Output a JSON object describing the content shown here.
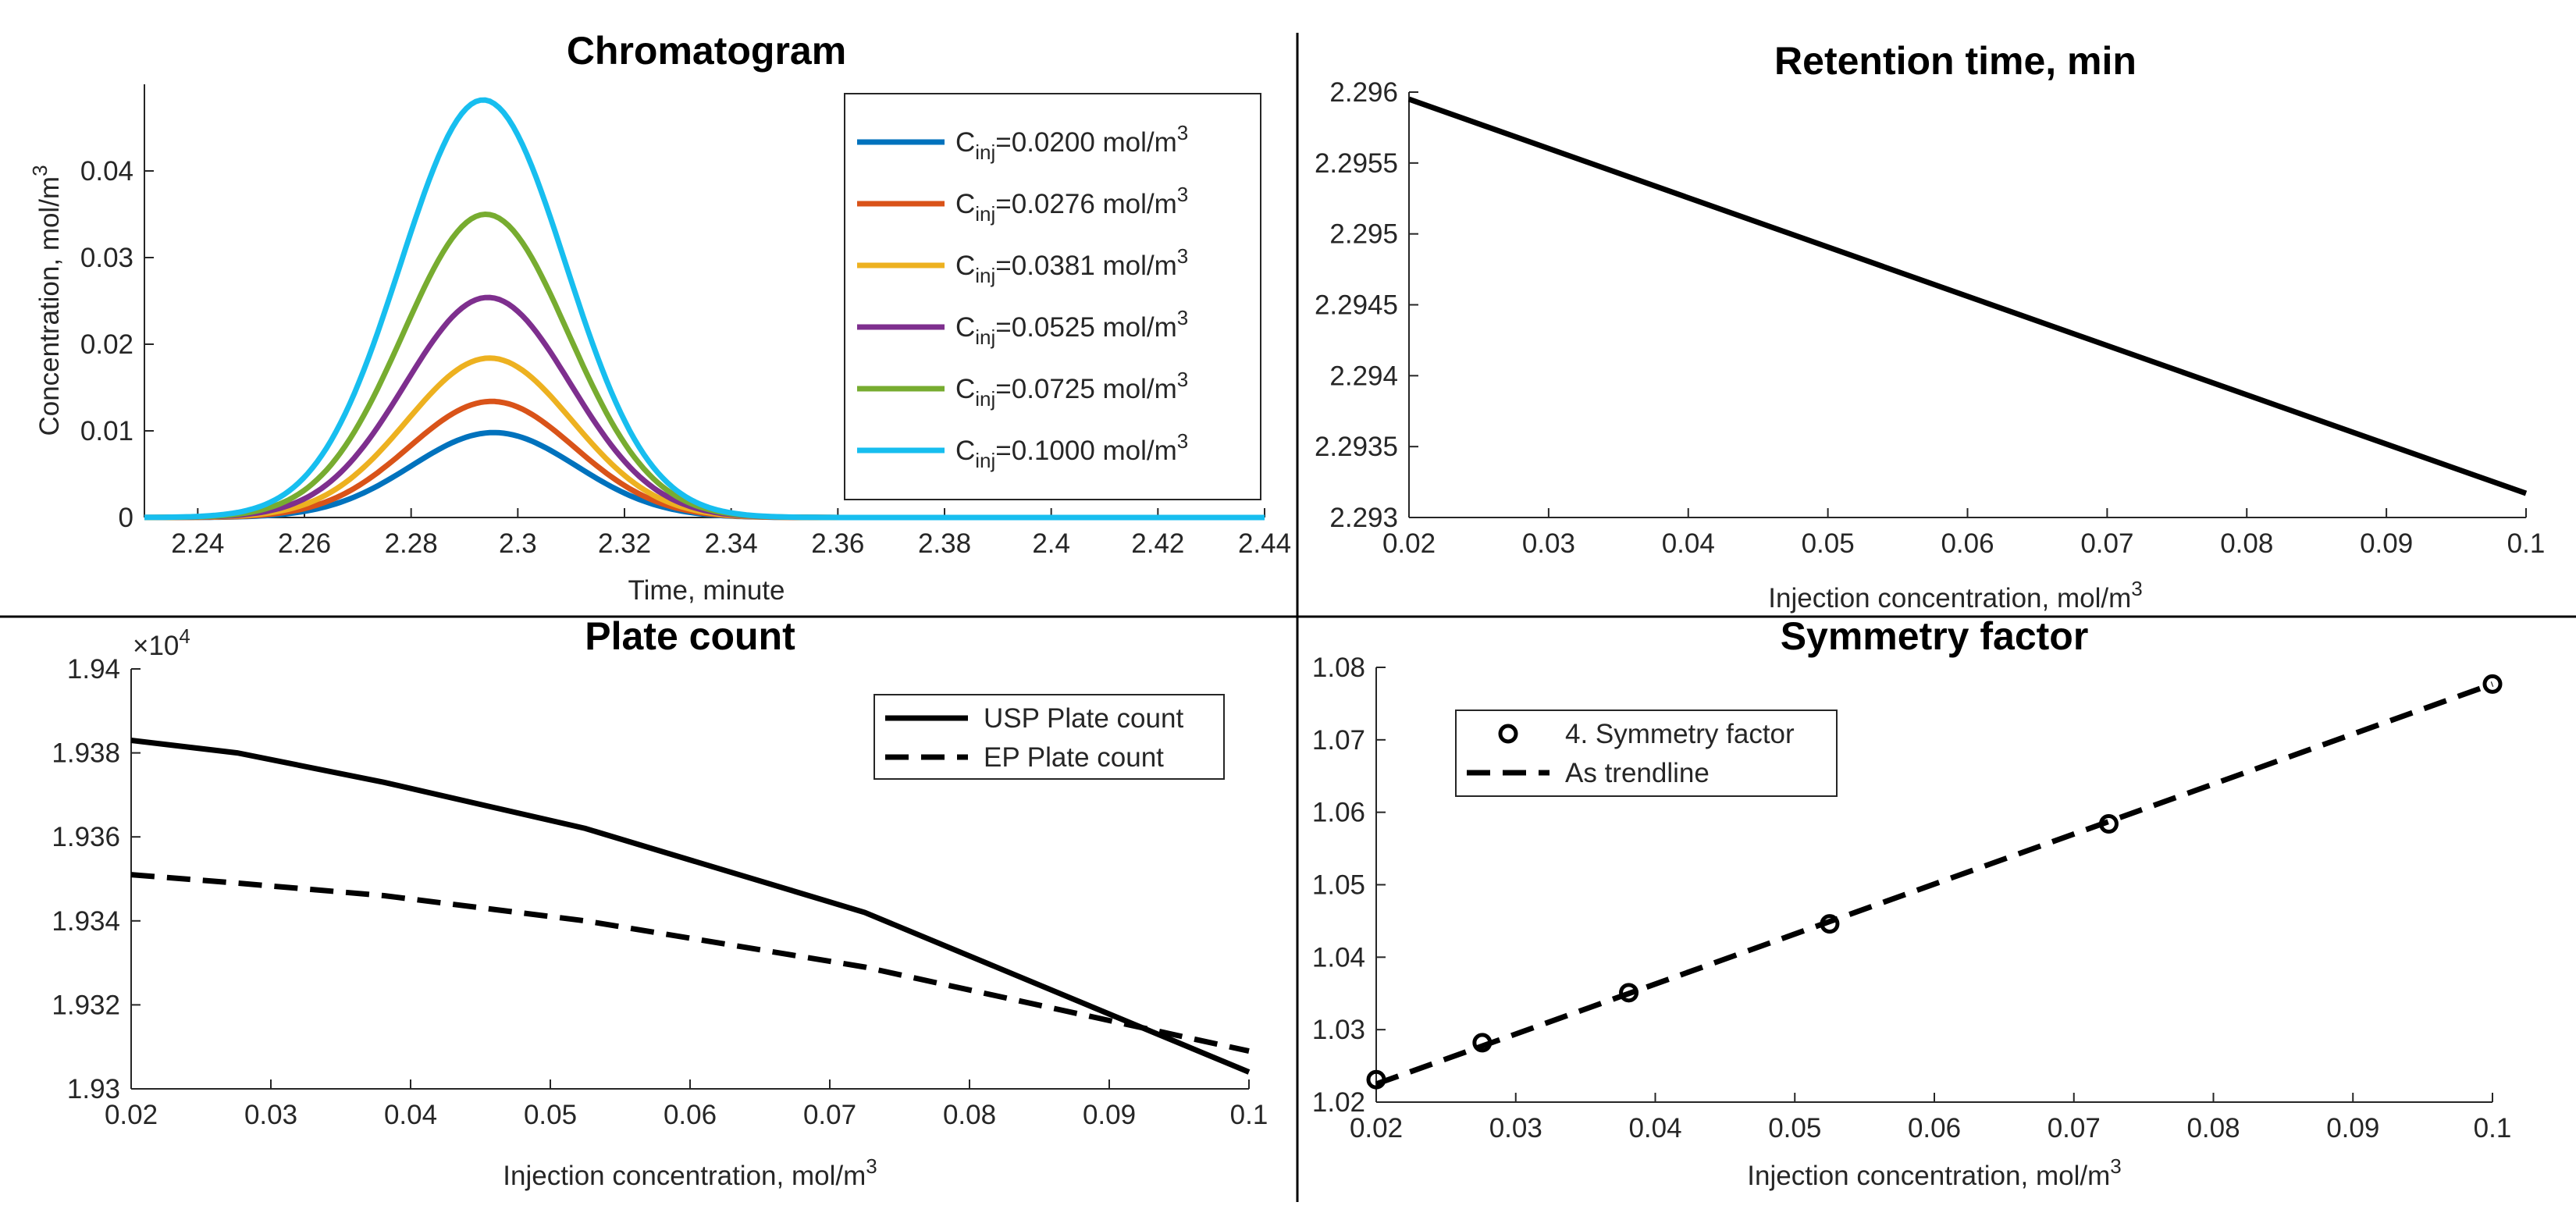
{
  "chart_data": [
    {
      "type": "line",
      "title": "Chromatogram",
      "xlabel": "Time, minute",
      "ylabel": "Concentration, mol/m",
      "ylabel_sup": "3",
      "xlim": [
        2.23,
        2.44
      ],
      "ylim": [
        0,
        0.05
      ],
      "xticks": [
        2.24,
        2.26,
        2.28,
        2.3,
        2.32,
        2.34,
        2.36,
        2.38,
        2.4,
        2.42,
        2.44
      ],
      "xtick_labels": [
        "2.24",
        "2.26",
        "2.28",
        "2.3",
        "2.32",
        "2.34",
        "2.36",
        "2.38",
        "2.4",
        "2.42",
        "2.44"
      ],
      "yticks": [
        0,
        0.01,
        0.02,
        0.03,
        0.04
      ],
      "ytick_labels": [
        "0",
        "0.01",
        "0.02",
        "0.03",
        "0.04"
      ],
      "legend_position": "top-right",
      "series": [
        {
          "name": "C_inj=0.0200 mol/m3",
          "base": "C",
          "sub": "inj",
          "value_text": "=0.0200 mol/m",
          "sup": "3",
          "color": "#0072BD",
          "peak_time": 2.2955,
          "peak_height": 0.0098,
          "sigma": 0.0155
        },
        {
          "name": "C_inj=0.0276 mol/m3",
          "base": "C",
          "sub": "inj",
          "value_text": "=0.0276 mol/m",
          "sup": "3",
          "color": "#D95319",
          "peak_time": 2.2951,
          "peak_height": 0.0134,
          "sigma": 0.0155
        },
        {
          "name": "C_inj=0.0381 mol/m3",
          "base": "C",
          "sub": "inj",
          "value_text": "=0.0381 mol/m",
          "sup": "3",
          "color": "#EDB120",
          "peak_time": 2.2947,
          "peak_height": 0.0184,
          "sigma": 0.0155
        },
        {
          "name": "C_inj=0.0525 mol/m3",
          "base": "C",
          "sub": "inj",
          "value_text": "=0.0525 mol/m",
          "sup": "3",
          "color": "#7E2F8E",
          "peak_time": 2.2944,
          "peak_height": 0.0254,
          "sigma": 0.0155
        },
        {
          "name": "C_inj=0.0725 mol/m3",
          "base": "C",
          "sub": "inj",
          "value_text": "=0.0725 mol/m",
          "sup": "3",
          "color": "#77AC30",
          "peak_time": 2.294,
          "peak_height": 0.035,
          "sigma": 0.0155
        },
        {
          "name": "C_inj=0.1000 mol/m3",
          "base": "C",
          "sub": "inj",
          "value_text": "=0.1000 mol/m",
          "sup": "3",
          "color": "#17BEEF",
          "peak_time": 2.2935,
          "peak_height": 0.0482,
          "sigma": 0.0155
        }
      ]
    },
    {
      "type": "line",
      "title": "Retention time, min",
      "xlabel": "Injection concentration, mol/m",
      "xlabel_sup": "3",
      "ylabel": "",
      "xlim": [
        0.02,
        0.1
      ],
      "ylim": [
        2.293,
        2.296
      ],
      "xticks": [
        0.02,
        0.03,
        0.04,
        0.05,
        0.06,
        0.07,
        0.08,
        0.09,
        0.1
      ],
      "xtick_labels": [
        "0.02",
        "0.03",
        "0.04",
        "0.05",
        "0.06",
        "0.07",
        "0.08",
        "0.09",
        "0.1"
      ],
      "yticks": [
        2.293,
        2.2935,
        2.294,
        2.2945,
        2.295,
        2.2955,
        2.296
      ],
      "ytick_labels": [
        "2.293",
        "2.2935",
        "2.294",
        "2.2945",
        "2.295",
        "2.2955",
        "2.296"
      ],
      "series": [
        {
          "name": "Retention time",
          "color": "#000000",
          "x": [
            0.02,
            0.1
          ],
          "y": [
            2.29595,
            2.29317
          ]
        }
      ]
    },
    {
      "type": "line",
      "title": "Plate count",
      "xlabel": "Injection concentration, mol/m",
      "xlabel_sup": "3",
      "ylabel": "",
      "xlim": [
        0.02,
        0.1
      ],
      "ylim": [
        1.93,
        1.94
      ],
      "y_multiplier_base": "×10",
      "y_multiplier_exp": "4",
      "xticks": [
        0.02,
        0.03,
        0.04,
        0.05,
        0.06,
        0.07,
        0.08,
        0.09,
        0.1
      ],
      "xtick_labels": [
        "0.02",
        "0.03",
        "0.04",
        "0.05",
        "0.06",
        "0.07",
        "0.08",
        "0.09",
        "0.1"
      ],
      "yticks": [
        1.93,
        1.932,
        1.934,
        1.936,
        1.938,
        1.94
      ],
      "ytick_labels": [
        "1.93",
        "1.932",
        "1.934",
        "1.936",
        "1.938",
        "1.94"
      ],
      "legend_position": "top-right",
      "series": [
        {
          "name": "USP Plate count",
          "color": "#000000",
          "dash": "solid",
          "x": [
            0.02,
            0.0276,
            0.0381,
            0.0525,
            0.0725,
            0.1
          ],
          "y": [
            1.9383,
            1.938,
            1.9373,
            1.9362,
            1.9342,
            1.9304
          ]
        },
        {
          "name": "EP Plate count",
          "color": "#000000",
          "dash": "dashed",
          "x": [
            0.02,
            0.0276,
            0.0381,
            0.0525,
            0.0725,
            0.1
          ],
          "y": [
            1.9351,
            1.9349,
            1.9346,
            1.934,
            1.9329,
            1.9309
          ]
        }
      ]
    },
    {
      "type": "scatter",
      "title": "Symmetry factor",
      "xlabel": "Injection concentration, mol/m",
      "xlabel_sup": "3",
      "ylabel": "",
      "xlim": [
        0.02,
        0.1
      ],
      "ylim": [
        1.02,
        1.08
      ],
      "xticks": [
        0.02,
        0.03,
        0.04,
        0.05,
        0.06,
        0.07,
        0.08,
        0.09,
        0.1
      ],
      "xtick_labels": [
        "0.02",
        "0.03",
        "0.04",
        "0.05",
        "0.06",
        "0.07",
        "0.08",
        "0.09",
        "0.1"
      ],
      "yticks": [
        1.02,
        1.03,
        1.04,
        1.05,
        1.06,
        1.07,
        1.08
      ],
      "ytick_labels": [
        "1.02",
        "1.03",
        "1.04",
        "1.05",
        "1.06",
        "1.07",
        "1.08"
      ],
      "legend_position": "top-left",
      "series": [
        {
          "name": "4. Symmetry factor",
          "color": "#000000",
          "marker": "circle",
          "x": [
            0.02,
            0.0276,
            0.0381,
            0.0525,
            0.0725,
            0.1
          ],
          "y": [
            1.0231,
            1.0282,
            1.0351,
            1.0446,
            1.0584,
            1.0777
          ]
        },
        {
          "name": "As trendline",
          "color": "#000000",
          "dash": "dashed",
          "x": [
            0.02,
            0.1
          ],
          "y": [
            1.0225,
            1.0777
          ]
        }
      ]
    }
  ]
}
